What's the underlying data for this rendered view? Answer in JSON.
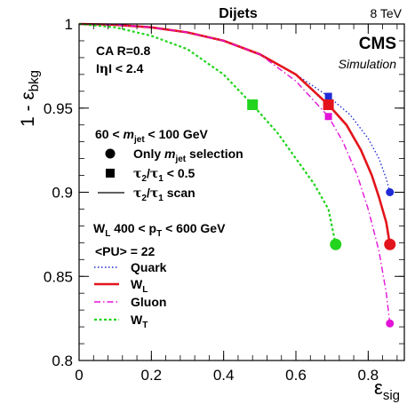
{
  "chart_data": {
    "type": "line",
    "title": "Dijets",
    "energy": "8 TeV",
    "experiment": "CMS",
    "experiment_sub": "Simulation",
    "ylabel": {
      "pre": "1 - ε",
      "sub": "bkg"
    },
    "xlabel": {
      "pre": "ε",
      "sub": "sig"
    },
    "xlim": [
      0,
      0.9
    ],
    "ylim": [
      0.8,
      1.0
    ],
    "xticks": [
      0,
      0.2,
      0.4,
      0.6,
      0.8
    ],
    "xtick_labels": [
      "0",
      "0.2",
      "0.4",
      "0.6",
      "0.8"
    ],
    "yticks": [
      0.8,
      0.85,
      0.9,
      0.95,
      1.0
    ],
    "ytick_labels": [
      "0.8",
      "0.85",
      "0.9",
      "0.95",
      "1"
    ],
    "top_annotations": [
      {
        "text": "CA R=0.8"
      },
      {
        "parts": [
          {
            "t": "I"
          },
          {
            "t": "η",
            "font": "DejaVu Serif"
          },
          {
            "t": "I < 2.4"
          }
        ]
      }
    ],
    "selection_header": {
      "parts": [
        {
          "t": "60 < "
        },
        {
          "t": "m",
          "italic": true
        },
        {
          "t": "jet",
          "sub": true
        },
        {
          "t": " < 100 GeV"
        }
      ]
    },
    "marker_legend": [
      {
        "marker": "circle",
        "parts": [
          {
            "t": "Only "
          },
          {
            "t": "m",
            "italic": true
          },
          {
            "t": "jet",
            "sub": true
          },
          {
            "t": " selection"
          }
        ]
      },
      {
        "marker": "square",
        "parts": [
          {
            "t": "τ",
            "font": "DejaVu Serif"
          },
          {
            "t": "2",
            "sub": true
          },
          {
            "t": "/"
          },
          {
            "t": "τ",
            "font": "DejaVu Serif"
          },
          {
            "t": "1",
            "sub": true
          },
          {
            "t": " < 0.5"
          }
        ]
      },
      {
        "marker": "line",
        "parts": [
          {
            "t": "τ",
            "font": "DejaVu Serif"
          },
          {
            "t": "2",
            "sub": true
          },
          {
            "t": "/"
          },
          {
            "t": "τ",
            "font": "DejaVu Serif"
          },
          {
            "t": "1",
            "sub": true
          },
          {
            "t": " scan"
          }
        ]
      }
    ],
    "sample_header": [
      {
        "parts": [
          {
            "t": "W"
          },
          {
            "t": "L",
            "sub": true
          },
          {
            "t": " 400 < p"
          },
          {
            "t": "T",
            "sub": true
          },
          {
            "t": " < 600 GeV"
          }
        ]
      },
      {
        "parts": [
          {
            "t": "<PU> = 22"
          }
        ]
      }
    ],
    "series": [
      {
        "name": "Quark",
        "legend_parts": [
          {
            "t": "Quark"
          }
        ],
        "color": "#1f2bd6",
        "dash": "1.5,2.5",
        "width": 1.4,
        "points": [
          [
            0,
            1.0
          ],
          [
            0.1,
            0.9995
          ],
          [
            0.2,
            0.998
          ],
          [
            0.3,
            0.995
          ],
          [
            0.4,
            0.99
          ],
          [
            0.5,
            0.982
          ],
          [
            0.6,
            0.97
          ],
          [
            0.69,
            0.957
          ],
          [
            0.75,
            0.946
          ],
          [
            0.8,
            0.932
          ],
          [
            0.83,
            0.92
          ],
          [
            0.85,
            0.908
          ],
          [
            0.86,
            0.9
          ]
        ],
        "square": [
          0.69,
          0.957
        ],
        "circle": [
          0.86,
          0.9
        ]
      },
      {
        "name": "W_L",
        "legend_parts": [
          {
            "t": "W"
          },
          {
            "t": "L",
            "sub": true
          }
        ],
        "color": "#e3141b",
        "dash": "",
        "width": 2.6,
        "points": [
          [
            0,
            1.0
          ],
          [
            0.1,
            0.9995
          ],
          [
            0.2,
            0.998
          ],
          [
            0.3,
            0.995
          ],
          [
            0.4,
            0.99
          ],
          [
            0.5,
            0.982
          ],
          [
            0.6,
            0.97
          ],
          [
            0.69,
            0.952
          ],
          [
            0.74,
            0.94
          ],
          [
            0.78,
            0.925
          ],
          [
            0.81,
            0.91
          ],
          [
            0.83,
            0.897
          ],
          [
            0.85,
            0.882
          ],
          [
            0.86,
            0.869
          ]
        ],
        "square": [
          0.69,
          0.952
        ],
        "circle": [
          0.86,
          0.869
        ]
      },
      {
        "name": "Gluon",
        "legend_parts": [
          {
            "t": "Gluon"
          }
        ],
        "color": "#e312d8",
        "dash": "7,3,1.5,3",
        "width": 1.4,
        "points": [
          [
            0,
            1.0
          ],
          [
            0.1,
            0.9995
          ],
          [
            0.2,
            0.998
          ],
          [
            0.3,
            0.995
          ],
          [
            0.4,
            0.99
          ],
          [
            0.5,
            0.982
          ],
          [
            0.6,
            0.966
          ],
          [
            0.69,
            0.945
          ],
          [
            0.73,
            0.93
          ],
          [
            0.77,
            0.91
          ],
          [
            0.8,
            0.89
          ],
          [
            0.83,
            0.865
          ],
          [
            0.85,
            0.84
          ],
          [
            0.86,
            0.822
          ]
        ],
        "square": [
          0.69,
          0.945
        ],
        "circle": [
          0.86,
          0.822
        ]
      },
      {
        "name": "W_T",
        "legend_parts": [
          {
            "t": "W"
          },
          {
            "t": "T",
            "sub": true
          }
        ],
        "color": "#22d41e",
        "dash": "3,2.5",
        "width": 2.2,
        "points": [
          [
            0,
            1.0
          ],
          [
            0.1,
            0.998
          ],
          [
            0.2,
            0.993
          ],
          [
            0.3,
            0.985
          ],
          [
            0.4,
            0.97
          ],
          [
            0.48,
            0.952
          ],
          [
            0.55,
            0.935
          ],
          [
            0.6,
            0.92
          ],
          [
            0.65,
            0.905
          ],
          [
            0.69,
            0.89
          ],
          [
            0.71,
            0.869
          ]
        ],
        "square": [
          0.48,
          0.952
        ],
        "circle": [
          0.71,
          0.869
        ]
      }
    ]
  }
}
